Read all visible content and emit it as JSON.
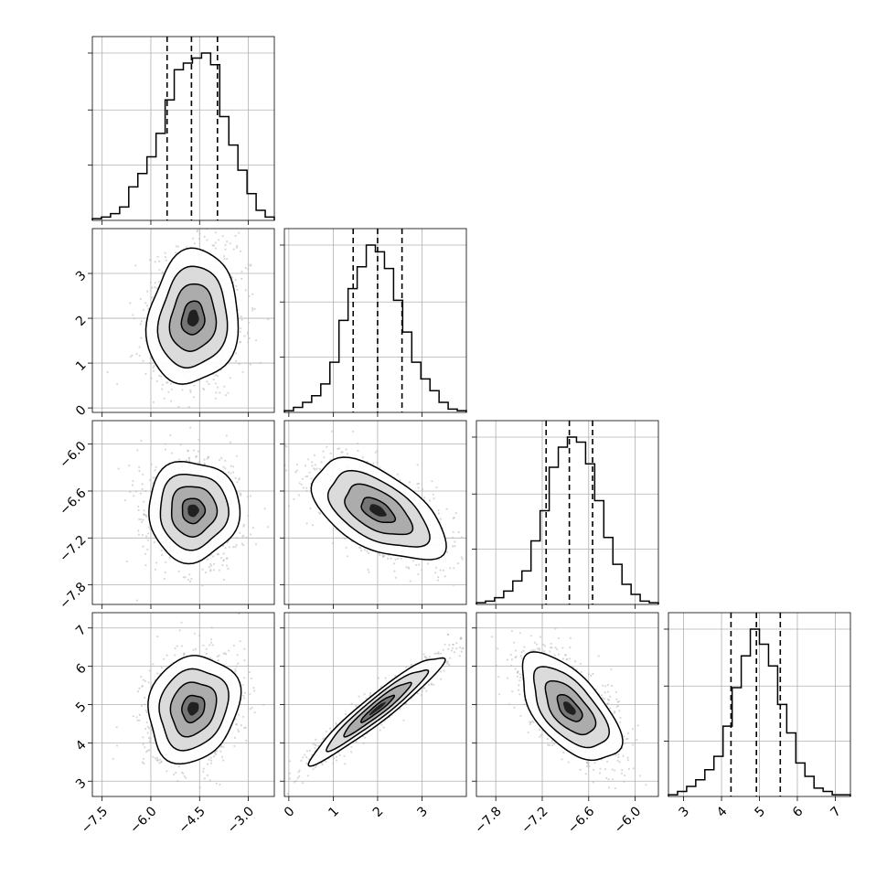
{
  "chart_data": {
    "type": "corner",
    "n_params": 4,
    "grid": true,
    "quantile_lines": "dashed",
    "params": [
      {
        "range": [
          -7.8,
          -2.2
        ],
        "ticks": [
          -7.5,
          -6.0,
          -4.5,
          -3.0
        ],
        "tick_labels": [
          "−7.5",
          "−6.0",
          "−4.5",
          "−3.0"
        ],
        "quantiles": [
          -5.5,
          -4.75,
          -3.95
        ],
        "hist_bins": [
          -7.8,
          -7.52,
          -7.24,
          -6.96,
          -6.68,
          -6.4,
          -6.12,
          -5.84,
          -5.56,
          -5.28,
          -5.0,
          -4.72,
          -4.44,
          -4.16,
          -3.88,
          -3.6,
          -3.32,
          -3.04,
          -2.76,
          -2.48,
          -2.2
        ],
        "hist_counts": [
          0.01,
          0.02,
          0.04,
          0.08,
          0.2,
          0.28,
          0.38,
          0.52,
          0.72,
          0.9,
          0.94,
          0.97,
          1.0,
          0.93,
          0.62,
          0.45,
          0.3,
          0.16,
          0.06,
          0.02
        ]
      },
      {
        "range": [
          -0.1,
          4.0
        ],
        "ticks": [
          0,
          1,
          2,
          3
        ],
        "tick_labels": [
          "0",
          "1",
          "2",
          "3"
        ],
        "quantiles": [
          1.45,
          2.0,
          2.55
        ],
        "hist_bins": [
          -0.1,
          0.105,
          0.31,
          0.515,
          0.72,
          0.925,
          1.13,
          1.335,
          1.54,
          1.745,
          1.95,
          2.155,
          2.36,
          2.565,
          2.77,
          2.975,
          3.18,
          3.385,
          3.59,
          3.795,
          4.0
        ],
        "hist_counts": [
          0.01,
          0.03,
          0.06,
          0.1,
          0.17,
          0.3,
          0.55,
          0.74,
          0.87,
          1.0,
          0.96,
          0.86,
          0.67,
          0.48,
          0.3,
          0.2,
          0.13,
          0.06,
          0.02,
          0.01
        ]
      },
      {
        "range": [
          -8.05,
          -5.7
        ],
        "ticks": [
          -7.8,
          -7.2,
          -6.6,
          -6.0
        ],
        "tick_labels": [
          "−7.8",
          "−7.2",
          "−6.6",
          "−6.0"
        ],
        "quantiles": [
          -7.15,
          -6.85,
          -6.55
        ],
        "hist_bins": [
          -8.05,
          -7.9325,
          -7.815,
          -7.6975,
          -7.58,
          -7.4625,
          -7.345,
          -7.2275,
          -7.11,
          -6.9925,
          -6.875,
          -6.7575,
          -6.64,
          -6.5225,
          -6.405,
          -6.2875,
          -6.17,
          -6.0525,
          -5.935,
          -5.8175,
          -5.7
        ],
        "hist_counts": [
          0.01,
          0.02,
          0.04,
          0.08,
          0.14,
          0.2,
          0.38,
          0.56,
          0.82,
          0.94,
          1.0,
          0.97,
          0.84,
          0.62,
          0.4,
          0.24,
          0.12,
          0.06,
          0.02,
          0.01
        ]
      },
      {
        "range": [
          2.6,
          7.4
        ],
        "ticks": [
          3,
          4,
          5,
          6,
          7
        ],
        "tick_labels": [
          "3",
          "4",
          "5",
          "6",
          "7"
        ],
        "quantiles": [
          4.25,
          4.92,
          5.55
        ],
        "hist_bins": [
          2.6,
          2.84,
          3.08,
          3.32,
          3.56,
          3.8,
          4.04,
          4.28,
          4.52,
          4.76,
          5.0,
          5.24,
          5.48,
          5.72,
          5.96,
          6.2,
          6.44,
          6.68,
          6.92,
          7.16,
          7.4
        ],
        "hist_counts": [
          0.01,
          0.03,
          0.06,
          0.1,
          0.16,
          0.24,
          0.42,
          0.65,
          0.84,
          1.0,
          0.91,
          0.78,
          0.55,
          0.38,
          0.2,
          0.12,
          0.05,
          0.03,
          0.01,
          0.01
        ]
      }
    ],
    "panels_2d": [
      {
        "row": 1,
        "col": 0,
        "center": [
          -4.7,
          2.0
        ],
        "sd": [
          0.7,
          0.75
        ],
        "corr": 0.1
      },
      {
        "row": 2,
        "col": 0,
        "center": [
          -4.7,
          -6.85
        ],
        "sd": [
          0.7,
          0.32
        ],
        "corr": 0.0
      },
      {
        "row": 2,
        "col": 1,
        "center": [
          2.0,
          -6.85
        ],
        "sd": [
          0.75,
          0.32
        ],
        "corr": -0.55
      },
      {
        "row": 3,
        "col": 0,
        "center": [
          -4.7,
          4.9
        ],
        "sd": [
          0.7,
          0.7
        ],
        "corr": 0.15
      },
      {
        "row": 3,
        "col": 1,
        "center": [
          2.0,
          4.9
        ],
        "sd": [
          0.75,
          0.7
        ],
        "corr": 0.95
      },
      {
        "row": 3,
        "col": 2,
        "center": [
          -6.85,
          4.9
        ],
        "sd": [
          0.32,
          0.7
        ],
        "corr": -0.6
      }
    ],
    "contour_levels_sigma": [
      0.5,
      1.0,
      1.5,
      2.0
    ],
    "colors": {
      "line": "#000000",
      "scatter": "#b8b8b8",
      "grid": "#b0b0b0",
      "axis": "#000000"
    }
  }
}
